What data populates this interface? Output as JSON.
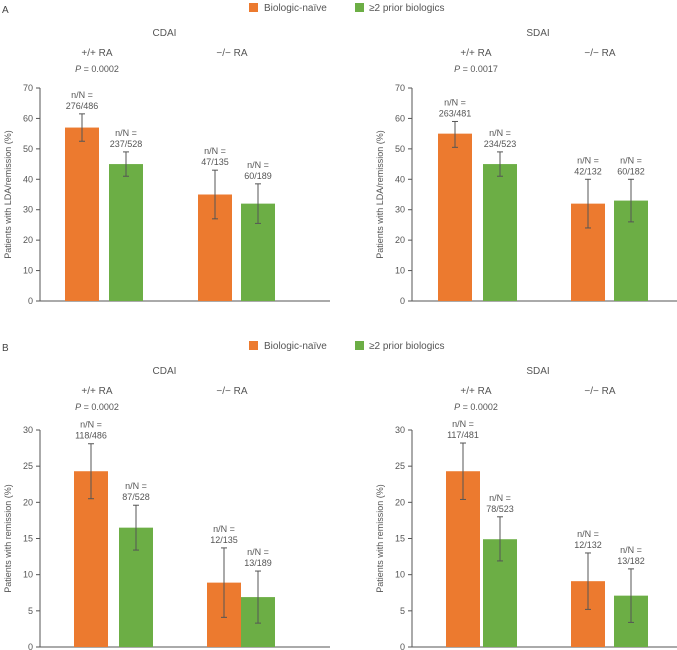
{
  "colors": {
    "naive": "#ec7a2f",
    "prior": "#6cae45",
    "axis": "#555555",
    "text": "#555555"
  },
  "legend": {
    "naive_label": "Biologic-naïve",
    "prior_label": "≥2 prior biologics"
  },
  "panel_letters": {
    "a": "A",
    "b": "B"
  },
  "chart_data": [
    {
      "type": "bar",
      "panel": "A",
      "title": "CDAI",
      "ylabel": "Patients with LDA/remission (%)",
      "ylim": [
        0,
        70
      ],
      "yticks": [
        0,
        10,
        20,
        30,
        40,
        50,
        60,
        70
      ],
      "groups": [
        {
          "label": "+/+ RA",
          "p_prefix": "P",
          "p_value": " = 0.0002",
          "bars": [
            {
              "series": "naive",
              "value": 57,
              "err_low": 52.5,
              "err_high": 61.5,
              "n_line1": "n/N =",
              "n_line2": "276/486"
            },
            {
              "series": "prior",
              "value": 45,
              "err_low": 41,
              "err_high": 49,
              "n_line1": "n/N =",
              "n_line2": "237/528"
            }
          ]
        },
        {
          "label": "−/− RA",
          "p_prefix": "",
          "p_value": "",
          "bars": [
            {
              "series": "naive",
              "value": 35,
              "err_low": 27,
              "err_high": 43,
              "n_line1": "n/N =",
              "n_line2": "47/135"
            },
            {
              "series": "prior",
              "value": 32,
              "err_low": 25.5,
              "err_high": 38.5,
              "n_line1": "n/N =",
              "n_line2": "60/189"
            }
          ]
        }
      ]
    },
    {
      "type": "bar",
      "panel": "A",
      "title": "SDAI",
      "ylabel": "Patients with LDA/remission (%)",
      "ylim": [
        0,
        70
      ],
      "yticks": [
        0,
        10,
        20,
        30,
        40,
        50,
        60,
        70
      ],
      "groups": [
        {
          "label": "+/+ RA",
          "p_prefix": "P",
          "p_value": " = 0.0017",
          "bars": [
            {
              "series": "naive",
              "value": 55,
              "err_low": 50.5,
              "err_high": 59,
              "n_line1": "n/N =",
              "n_line2": "263/481"
            },
            {
              "series": "prior",
              "value": 45,
              "err_low": 41,
              "err_high": 49,
              "n_line1": "n/N =",
              "n_line2": "234/523"
            }
          ]
        },
        {
          "label": "−/− RA",
          "p_prefix": "",
          "p_value": "",
          "bars": [
            {
              "series": "naive",
              "value": 32,
              "err_low": 24,
              "err_high": 40,
              "n_line1": "n/N =",
              "n_line2": "42/132"
            },
            {
              "series": "prior",
              "value": 33,
              "err_low": 26,
              "err_high": 40,
              "n_line1": "n/N =",
              "n_line2": "60/182"
            }
          ]
        }
      ]
    },
    {
      "type": "bar",
      "panel": "B",
      "title": "CDAI",
      "ylabel": "Patients with remission (%)",
      "ylim": [
        0,
        30
      ],
      "yticks": [
        0,
        5,
        10,
        15,
        20,
        25,
        30
      ],
      "groups": [
        {
          "label": "+/+ RA",
          "p_prefix": "P",
          "p_value": " = 0.0002",
          "bars": [
            {
              "series": "naive",
              "value": 24.3,
              "err_low": 20.5,
              "err_high": 28.1,
              "n_line1": "n/N =",
              "n_line2": "118/486"
            },
            {
              "series": "prior",
              "value": 16.5,
              "err_low": 13.4,
              "err_high": 19.6,
              "n_line1": "n/N =",
              "n_line2": "87/528"
            }
          ]
        },
        {
          "label": "−/− RA",
          "p_prefix": "",
          "p_value": "",
          "bars": [
            {
              "series": "naive",
              "value": 8.9,
              "err_low": 4.1,
              "err_high": 13.7,
              "n_line1": "n/N =",
              "n_line2": "12/135"
            },
            {
              "series": "prior",
              "value": 6.9,
              "err_low": 3.3,
              "err_high": 10.5,
              "n_line1": "n/N =",
              "n_line2": "13/189"
            }
          ]
        }
      ]
    },
    {
      "type": "bar",
      "panel": "B",
      "title": "SDAI",
      "ylabel": "Patients with remission (%)",
      "ylim": [
        0,
        30
      ],
      "yticks": [
        0,
        5,
        10,
        15,
        20,
        25,
        30
      ],
      "groups": [
        {
          "label": "+/+ RA",
          "p_prefix": "P",
          "p_value": " = 0.0002",
          "bars": [
            {
              "series": "naive",
              "value": 24.3,
              "err_low": 20.4,
              "err_high": 28.2,
              "n_line1": "n/N =",
              "n_line2": "117/481"
            },
            {
              "series": "prior",
              "value": 14.9,
              "err_low": 11.9,
              "err_high": 18,
              "n_line1": "n/N =",
              "n_line2": "78/523"
            }
          ]
        },
        {
          "label": "−/− RA",
          "p_prefix": "",
          "p_value": "",
          "bars": [
            {
              "series": "naive",
              "value": 9.1,
              "err_low": 5.2,
              "err_high": 13,
              "n_line1": "n/N =",
              "n_line2": "12/132"
            },
            {
              "series": "prior",
              "value": 7.1,
              "err_low": 3.4,
              "err_high": 10.8,
              "n_line1": "n/N =",
              "n_line2": "13/182"
            }
          ]
        }
      ]
    }
  ]
}
